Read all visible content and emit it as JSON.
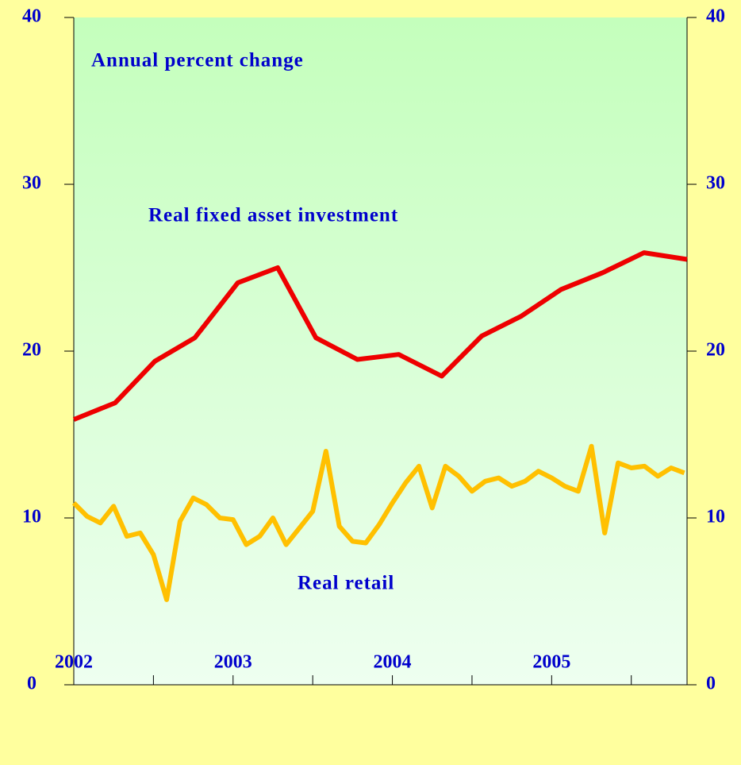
{
  "chart_data": {
    "type": "line",
    "annotations": [
      "Annual percent change",
      "Real fixed asset investment",
      "Real retail"
    ],
    "xlim": [
      2002,
      2005.85
    ],
    "xticks": [
      2002,
      2003,
      2004,
      2005
    ],
    "xminorticks": [
      2002.5,
      2003.5,
      2004.5,
      2005.5
    ],
    "ylim": [
      0,
      40
    ],
    "yticks": [
      0,
      10,
      20,
      30,
      40
    ],
    "y2lim": [
      0,
      40
    ],
    "y2ticks": [
      0,
      10,
      20,
      30,
      40
    ],
    "series": [
      {
        "name": "Real fixed asset investment",
        "color": "#ee0000",
        "x": [
          2002,
          2002.26,
          2002.51,
          2002.76,
          2003.03,
          2003.28,
          2003.52,
          2003.78,
          2004.04,
          2004.31,
          2004.56,
          2004.81,
          2005.06,
          2005.32,
          2005.58,
          2005.85
        ],
        "values": [
          15.9,
          16.9,
          19.4,
          20.8,
          24.1,
          25.0,
          20.8,
          19.5,
          19.8,
          18.5,
          20.9,
          22.1,
          23.7,
          24.7,
          25.9,
          25.5
        ]
      },
      {
        "name": "Real retail",
        "color": "#ffc000",
        "x": [
          2002,
          2002.083,
          2002.167,
          2002.25,
          2002.333,
          2002.417,
          2002.5,
          2002.583,
          2002.667,
          2002.75,
          2002.833,
          2002.917,
          2003,
          2003.083,
          2003.167,
          2003.25,
          2003.333,
          2003.417,
          2003.5,
          2003.583,
          2003.667,
          2003.75,
          2003.833,
          2003.917,
          2004,
          2004.083,
          2004.167,
          2004.25,
          2004.333,
          2004.417,
          2004.5,
          2004.583,
          2004.667,
          2004.75,
          2004.833,
          2004.917,
          2005,
          2005.083,
          2005.167,
          2005.25,
          2005.333,
          2005.417,
          2005.5,
          2005.583,
          2005.667,
          2005.75,
          2005.833
        ],
        "values": [
          10.9,
          10.1,
          9.7,
          10.7,
          8.9,
          9.1,
          7.8,
          5.1,
          9.8,
          11.2,
          10.8,
          10.0,
          9.9,
          8.4,
          8.9,
          10.0,
          8.4,
          9.4,
          10.4,
          14.0,
          9.5,
          8.6,
          8.5,
          9.6,
          10.9,
          12.1,
          13.1,
          10.6,
          13.1,
          12.5,
          11.6,
          12.2,
          12.4,
          11.9,
          12.2,
          12.8,
          12.4,
          11.9,
          11.6,
          14.3,
          9.1,
          13.3,
          13.0,
          13.1,
          12.5,
          13.0,
          12.7
        ]
      }
    ]
  }
}
